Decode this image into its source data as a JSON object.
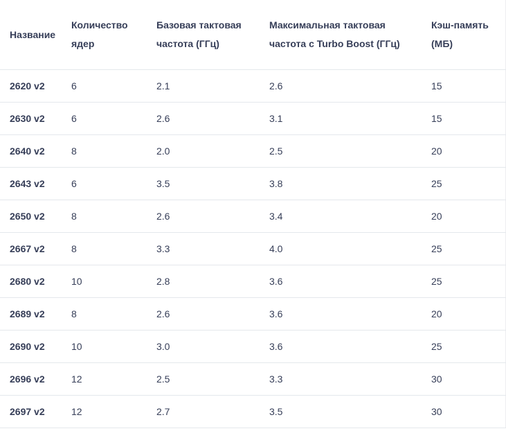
{
  "chart_data": {
    "type": "table",
    "columns": [
      "Название",
      "Количество ядер",
      "Базовая тактовая частота (ГГц)",
      "Максимальная тактовая частота с Turbo Boost (ГГц)",
      "Кэш-память (МБ)"
    ],
    "rows": [
      [
        "2620 v2",
        "6",
        "2.1",
        "2.6",
        "15"
      ],
      [
        "2630 v2",
        "6",
        "2.6",
        "3.1",
        "15"
      ],
      [
        "2640 v2",
        "8",
        "2.0",
        "2.5",
        "20"
      ],
      [
        "2643 v2",
        "6",
        "3.5",
        "3.8",
        "25"
      ],
      [
        "2650 v2",
        "8",
        "2.6",
        "3.4",
        "20"
      ],
      [
        "2667 v2",
        "8",
        "3.3",
        "4.0",
        "25"
      ],
      [
        "2680 v2",
        "10",
        "2.8",
        "3.6",
        "25"
      ],
      [
        "2689 v2",
        "8",
        "2.6",
        "3.6",
        "20"
      ],
      [
        "2690 v2",
        "10",
        "3.0",
        "3.6",
        "25"
      ],
      [
        "2696 v2",
        "12",
        "2.5",
        "3.3",
        "30"
      ],
      [
        "2697 v2",
        "12",
        "2.7",
        "3.5",
        "30"
      ]
    ]
  },
  "colors": {
    "text": "#363e58",
    "divider": "#e4e8ec",
    "background": "#ffffff",
    "edge_border": "#ededf0"
  }
}
